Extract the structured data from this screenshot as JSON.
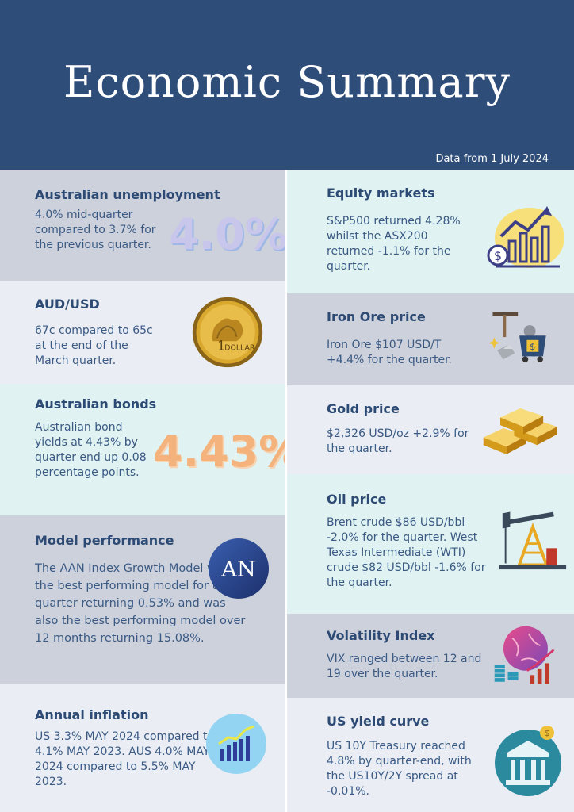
{
  "header": {
    "title": "Economic Summary",
    "date": "Data from 1 July 2024"
  },
  "colors": {
    "header_bg": "#2e4d79",
    "panel_gray": "#cdd1dc",
    "panel_light": "#eaeef4",
    "panel_teal": "#e0f2f1",
    "text_navy": "#2c4a74"
  },
  "left": {
    "unemployment": {
      "title": "Australian unemployment",
      "text": "4.0% mid-quarter compared to 3.7% for the previous quarter.",
      "big": "4.0%"
    },
    "audusd": {
      "title": "AUD/USD",
      "text": "67c compared to 65c at the end of the March quarter.",
      "coin_label": "DOLLAR",
      "coin_number": "1",
      "icon": "dollar-coin-icon"
    },
    "bonds": {
      "title": "Australian bonds",
      "text": "Australian bond yields at 4.43% by quarter end up 0.08 percentage points.",
      "big": "4.43%"
    },
    "model": {
      "title": "Model performance",
      "text": "The AAN Index Growth Model was the best performing model for the quarter returning 0.53% and was also the best performing model over 12 months returning 15.08%.",
      "logo": "AN"
    },
    "inflation": {
      "title": "Annual inflation",
      "text": "US 3.3% MAY 2024 compared to 4.1% MAY 2023. AUS 4.0% MAY 2024 compared to 5.5% MAY 2023.",
      "icon": "rising-bar-chart-icon"
    }
  },
  "right": {
    "equity": {
      "title": "Equity markets",
      "text": "S&P500 returned 4.28% whilst the ASX200 returned -1.1% for the quarter.",
      "icon": "growth-chart-icon"
    },
    "ironore": {
      "title": "Iron Ore price",
      "text": "Iron Ore $107 USD/T +4.4% for the quarter.",
      "icon": "mining-cart-icon"
    },
    "gold": {
      "title": "Gold price",
      "text": "$2,326 USD/oz +2.9% for the quarter.",
      "icon": "gold-bars-icon"
    },
    "oil": {
      "title": "Oil price",
      "text": "Brent crude $86 USD/bbl -2.0% for the quarter. West Texas Intermediate (WTI) crude $82 USD/bbl -1.6% for the quarter.",
      "icon": "oil-pump-icon"
    },
    "vix": {
      "title": "Volatility Index",
      "text": "VIX ranged between 12 and 19 over the quarter.",
      "icon": "globe-coins-chart-icon"
    },
    "yield": {
      "title": "US yield curve",
      "text": "US 10Y Treasury reached 4.8% by quarter-end, with the US10Y/2Y spread at -0.01%.",
      "icon": "bank-icon"
    }
  }
}
